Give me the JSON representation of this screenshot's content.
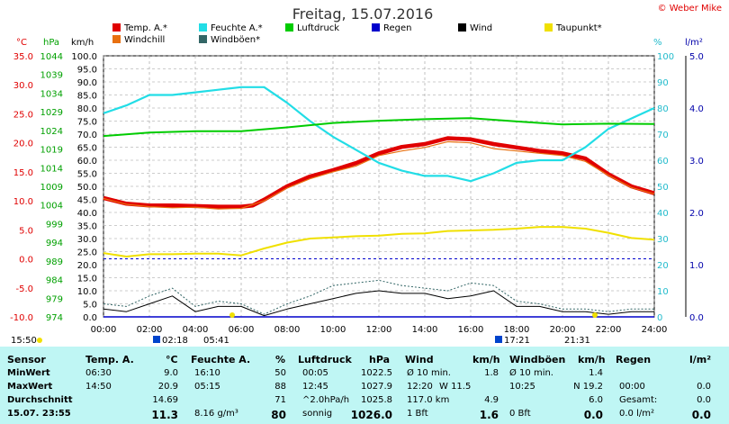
{
  "title": "Freitag, 15.07.2016",
  "copyright": "© Weber Mike",
  "legend": [
    {
      "label": "Temp. A.*",
      "color": "#e00000"
    },
    {
      "label": "Feuchte A.*",
      "color": "#22dde6"
    },
    {
      "label": "Luftdruck",
      "color": "#00cc00"
    },
    {
      "label": "Regen",
      "color": "#0000cc"
    },
    {
      "label": "Wind",
      "color": "#000000"
    },
    {
      "label": "Taupunkt*",
      "color": "#f0e000"
    },
    {
      "label": "Windchill",
      "color": "#e87010"
    },
    {
      "label": "Windböen*",
      "color": "#336666"
    }
  ],
  "axis_units": {
    "temp": "°C",
    "pressure": "hPa",
    "wind": "km/h",
    "humidity": "%",
    "rain": "l/m²"
  },
  "sun": {
    "sunrise": "05:41",
    "sunset": "21:31"
  },
  "marker_times": [
    "15:50",
    "02:18",
    "17:21"
  ],
  "chart_data": {
    "type": "line",
    "x_ticks": [
      "00:00",
      "02:00",
      "04:00",
      "06:00",
      "08:00",
      "10:00",
      "12:00",
      "14:00",
      "16:00",
      "18:00",
      "20:00",
      "22:00",
      "24:00"
    ],
    "axes": {
      "temp": {
        "ticks": [
          "35.0",
          "30.0",
          "25.0",
          "20.0",
          "15.0",
          "10.0",
          "5.0",
          "0.0",
          "-5.0",
          "-10.0"
        ],
        "min": -10,
        "max": 35
      },
      "pressure": {
        "ticks": [
          "1044",
          "1039",
          "1034",
          "1029",
          "1024",
          "1019",
          "1014",
          "1009",
          "1004",
          "999",
          "994",
          "989",
          "984",
          "979",
          "974"
        ],
        "min": 974,
        "max": 1044
      },
      "wind": {
        "ticks": [
          "100.0",
          "95.0",
          "90.0",
          "85.0",
          "80.0",
          "75.0",
          "70.0",
          "65.0",
          "60.0",
          "55.0",
          "50.0",
          "45.0",
          "40.0",
          "35.0",
          "30.0",
          "25.0",
          "20.0",
          "15.0",
          "10.0",
          "5.0",
          "0.0"
        ],
        "min": 0,
        "max": 100
      },
      "humidity": {
        "ticks": [
          "100",
          "90",
          "80",
          "70",
          "60",
          "50",
          "40",
          "30",
          "20",
          "10",
          "0"
        ],
        "min": 0,
        "max": 100
      },
      "rain": {
        "ticks": [
          "5.0",
          "4.0",
          "3.0",
          "2.0",
          "1.0",
          "0.0"
        ],
        "min": 0,
        "max": 5
      }
    },
    "series": [
      {
        "name": "Temp. A.*",
        "axis": "temp",
        "color": "#e00000",
        "x": [
          0,
          1,
          2,
          3,
          4,
          5,
          6,
          6.5,
          7,
          8,
          9,
          10,
          11,
          12,
          13,
          14,
          15,
          16,
          17,
          18,
          19,
          20,
          21,
          22,
          23,
          24
        ],
        "y": [
          10.5,
          9.5,
          9.2,
          9.2,
          9.1,
          9.0,
          9.0,
          9.2,
          10.2,
          12.5,
          14.2,
          15.3,
          16.5,
          18.2,
          19.3,
          19.8,
          20.8,
          20.6,
          19.8,
          19.2,
          18.6,
          18.2,
          17.3,
          14.6,
          12.5,
          11.3
        ]
      },
      {
        "name": "Windchill",
        "axis": "temp",
        "color": "#e87010",
        "x": [
          0,
          1,
          2,
          3,
          4,
          5,
          6,
          7,
          8,
          9,
          10,
          11,
          12,
          13,
          14,
          15,
          16,
          17,
          18,
          19,
          20,
          21,
          22,
          23,
          24
        ],
        "y": [
          10.4,
          9.4,
          9.0,
          8.8,
          8.9,
          8.6,
          8.7,
          10.0,
          12.2,
          13.8,
          15.0,
          16.0,
          17.8,
          18.6,
          19.2,
          20.2,
          20.0,
          19.0,
          18.6,
          18.2,
          17.8,
          16.8,
          14.4,
          12.3,
          11.2
        ]
      },
      {
        "name": "Feuchte A.*",
        "axis": "humidity",
        "color": "#22dde6",
        "x": [
          0,
          1,
          2,
          3,
          4,
          5,
          6,
          7,
          8,
          9,
          10,
          11,
          12,
          13,
          14,
          15,
          16,
          17,
          18,
          19,
          20,
          21,
          22,
          23,
          24
        ],
        "y": [
          78,
          81,
          85,
          85,
          86,
          87,
          88,
          88,
          82,
          75,
          69,
          64,
          59,
          56,
          54,
          54,
          52,
          55,
          59,
          60,
          60,
          65,
          72,
          76,
          80
        ]
      },
      {
        "name": "Luftdruck",
        "axis": "pressure",
        "color": "#00cc00",
        "x": [
          0,
          2,
          4,
          6,
          8,
          10,
          12,
          14,
          16,
          18,
          20,
          22,
          24
        ],
        "y": [
          1022.5,
          1023.4,
          1023.8,
          1023.8,
          1024.8,
          1026.0,
          1026.6,
          1027.0,
          1027.3,
          1026.4,
          1025.6,
          1025.8,
          1025.7
        ]
      },
      {
        "name": "Taupunkt*",
        "axis": "temp",
        "color": "#f0e000",
        "x": [
          0,
          1,
          2,
          3,
          4,
          5,
          6,
          7,
          8,
          9,
          10,
          11,
          12,
          13,
          14,
          15,
          16,
          17,
          18,
          19,
          20,
          21,
          22,
          23,
          24
        ],
        "y": [
          1.0,
          0.4,
          0.8,
          0.8,
          0.9,
          0.9,
          0.6,
          1.8,
          2.8,
          3.5,
          3.7,
          3.9,
          4.0,
          4.3,
          4.4,
          4.8,
          4.9,
          5.0,
          5.2,
          5.5,
          5.5,
          5.2,
          4.5,
          3.6,
          3.3
        ]
      },
      {
        "name": "Wind",
        "axis": "wind",
        "color": "#000000",
        "x": [
          0,
          1,
          2,
          3,
          4,
          5,
          6,
          7,
          8,
          9,
          10,
          11,
          12,
          13,
          14,
          15,
          16,
          17,
          18,
          19,
          20,
          21,
          22,
          23,
          24
        ],
        "y": [
          3,
          2,
          5,
          8,
          2,
          4,
          4,
          0.5,
          3,
          5,
          7,
          9,
          10,
          9,
          9,
          7,
          8,
          10,
          4,
          4,
          2,
          2,
          1,
          2,
          2
        ]
      },
      {
        "name": "Windböen*",
        "axis": "wind",
        "color": "#336666",
        "x": [
          0,
          1,
          2,
          3,
          4,
          5,
          6,
          7,
          8,
          9,
          10,
          11,
          12,
          13,
          14,
          15,
          16,
          17,
          18,
          19,
          20,
          21,
          22,
          23,
          24
        ],
        "y": [
          5,
          4,
          8,
          11,
          4,
          6,
          5,
          1,
          5,
          8,
          12,
          13,
          14,
          12,
          11,
          10,
          13,
          12,
          6,
          5,
          3,
          3,
          2,
          3,
          3
        ]
      },
      {
        "name": "Regen",
        "axis": "rain",
        "color": "#0000cc",
        "x": [
          0,
          24
        ],
        "y": [
          0,
          0
        ]
      }
    ]
  },
  "summary": {
    "headers": {
      "sensor": "Sensor",
      "temp": "Temp. A.",
      "temp_unit": "°C",
      "hum": "Feuchte A.",
      "hum_unit": "%",
      "press": "Luftdruck",
      "press_unit": "hPa",
      "wind": "Wind",
      "wind_unit": "km/h",
      "gust": "Windböen",
      "gust_unit": "km/h",
      "rain": "Regen",
      "rain_unit": "l/m²"
    },
    "rows": [
      {
        "label": "MinWert",
        "temp_time": "06:30",
        "temp_val": "9.0",
        "hum_time": "16:10",
        "hum_val": "50",
        "press_time": "00:05",
        "press_val": "1022.5",
        "wind_time": "Ø 10 min.",
        "wind_val": "1.8",
        "gust_time": "Ø 10 min.",
        "gust_val": "1.4",
        "rain_time": "",
        "rain_val": ""
      },
      {
        "label": "MaxWert",
        "temp_time": "14:50",
        "temp_val": "20.9",
        "hum_time": "05:15",
        "hum_val": "88",
        "press_time": "12:45",
        "press_val": "1027.9",
        "wind_time": "12:20",
        "wind_mid": "W 11.5",
        "wind_val": "",
        "gust_time": "10:25",
        "gust_val": "N 19.2",
        "rain_time": "00:00",
        "rain_val": "0.0"
      },
      {
        "label": "Durchschnitt",
        "temp_time": "",
        "temp_val": "14.69",
        "hum_time": "",
        "hum_val": "71",
        "press_time": "^2.0hPa/h",
        "press_val": "1025.8",
        "wind_time": "117.0 km",
        "wind_val": "4.9",
        "gust_time": "",
        "gust_val": "6.0",
        "rain_time": "Gesamt:",
        "rain_val": "0.0"
      },
      {
        "label": "15.07.  23:55",
        "temp_time": "",
        "temp_val": "11.3",
        "hum_time": "8.16 g/m³",
        "hum_val": "80",
        "press_time": "sonnig",
        "press_val": "1026.0",
        "wind_time": "1 Bft",
        "wind_val": "1.6",
        "gust_time": "0 Bft",
        "gust_val": "0.0",
        "rain_time": "0.0 l/m²",
        "rain_val": "0.0"
      }
    ]
  }
}
